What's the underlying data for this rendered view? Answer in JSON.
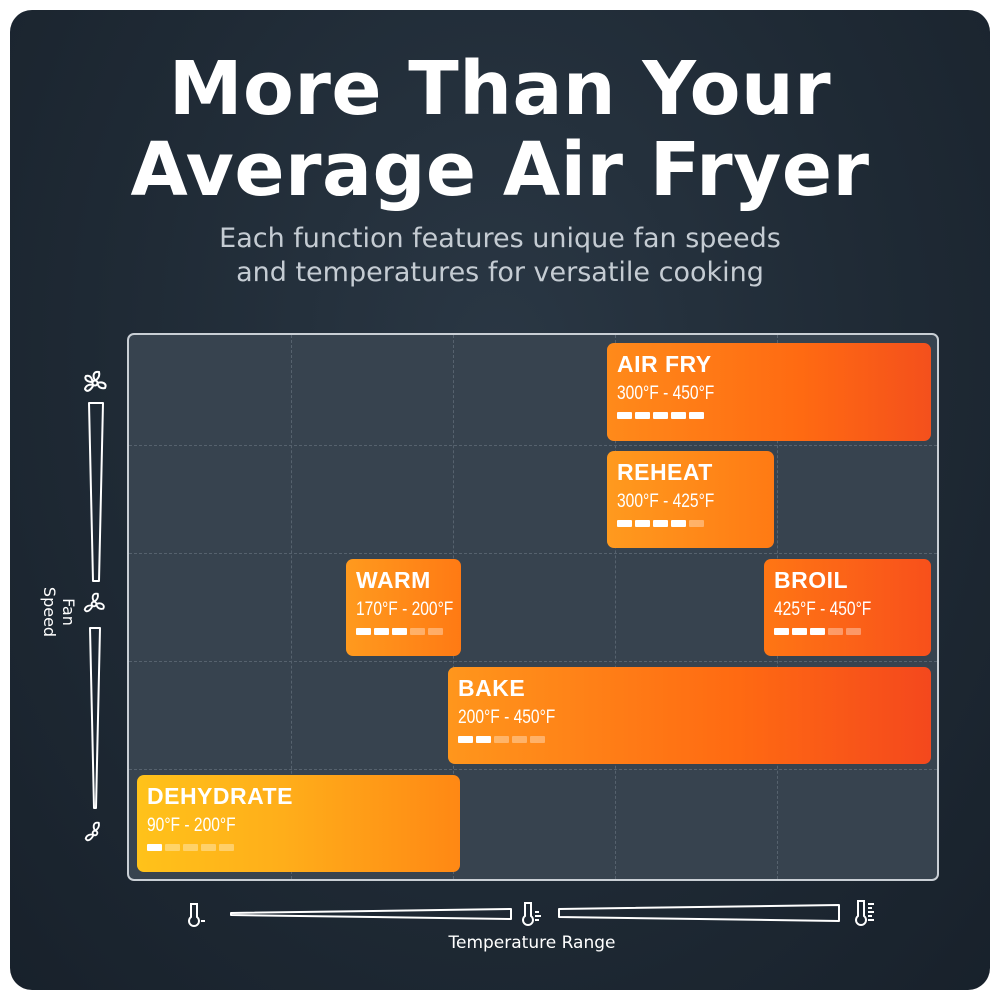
{
  "title_line1": "More Than Your",
  "title_line2": "Average Air Fryer",
  "subtitle_line1": "Each function features unique fan speeds",
  "subtitle_line2": "and temperatures for versatile cooking",
  "y_axis_label": "Fan Speed",
  "x_axis_label": "Temperature Range",
  "functions": [
    {
      "name": "AIR FRY",
      "temp": "300°F - 450°F",
      "fan_level": 5
    },
    {
      "name": "REHEAT",
      "temp": "300°F - 425°F",
      "fan_level": 4
    },
    {
      "name": "WARM",
      "temp": "170°F - 200°F",
      "fan_level": 3
    },
    {
      "name": "BROIL",
      "temp": "425°F - 450°F",
      "fan_level": 3
    },
    {
      "name": "BAKE",
      "temp": "200°F - 450°F",
      "fan_level": 2
    },
    {
      "name": "DEHYDRATE",
      "temp": "90°F - 200°F",
      "fan_level": 1
    }
  ],
  "icons": {
    "fan": "fan-icon",
    "thermometer": "thermometer-icon"
  },
  "colors": {
    "background": "#1f2a35",
    "grid": "#37434f",
    "accent_orange": "#ff6a12",
    "accent_yellow": "#ffb81a"
  }
}
